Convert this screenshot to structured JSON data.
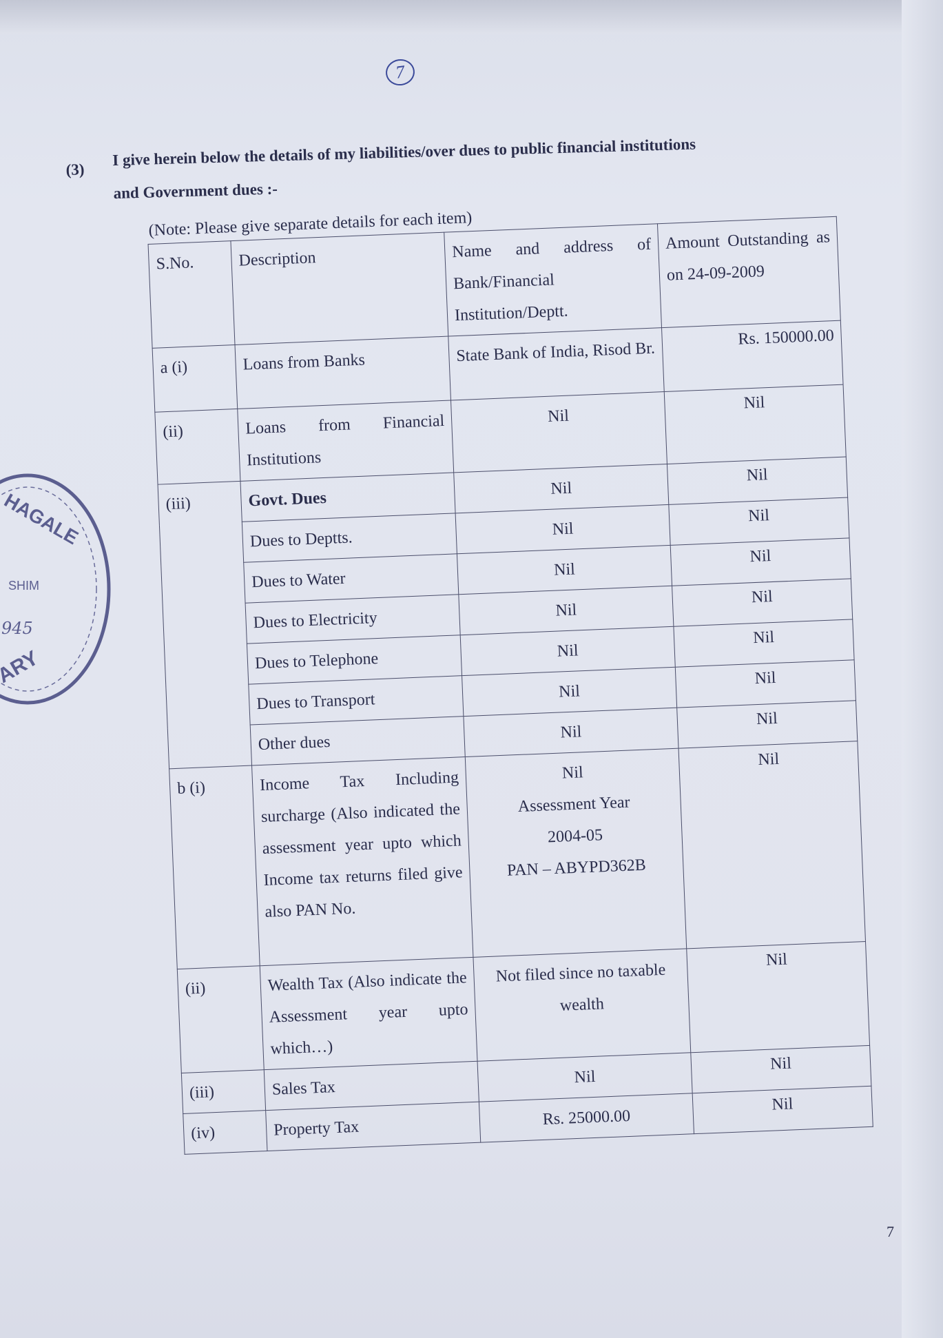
{
  "page": {
    "handwritten_page_mark": "7",
    "page_number": "7"
  },
  "heading": {
    "number": "(3)",
    "line1": "I give herein below the details of my liabilities/over dues to public financial institutions",
    "line2": "and Government dues :-"
  },
  "note": "(Note: Please give separate details for each item)",
  "table": {
    "headers": [
      "S.No.",
      "Description",
      "Name and address of Bank/Financial Institution/Deptt.",
      "Amount Outstanding as on 24-09-2009"
    ],
    "rows": [
      {
        "sno": "a (i)",
        "description": "Loans from Banks",
        "institution": "State Bank of India, Risod Br.",
        "amount": "Rs. 150000.00"
      },
      {
        "sno": "(ii)",
        "description": "Loans from Financial Institutions",
        "institution": "Nil",
        "amount": "Nil"
      },
      {
        "sno": "(iii)",
        "description": "Govt. Dues",
        "institution": "Nil",
        "amount": "Nil"
      },
      {
        "sno": "",
        "description": "Dues to Deptts.",
        "institution": "Nil",
        "amount": "Nil"
      },
      {
        "sno": "",
        "description": "Dues to Water",
        "institution": "Nil",
        "amount": "Nil"
      },
      {
        "sno": "",
        "description": "Dues to Electricity",
        "institution": "Nil",
        "amount": "Nil"
      },
      {
        "sno": "",
        "description": "Dues to Telephone",
        "institution": "Nil",
        "amount": "Nil"
      },
      {
        "sno": "",
        "description": "Dues to Transport",
        "institution": "Nil",
        "amount": "Nil"
      },
      {
        "sno": "",
        "description": "Other dues",
        "institution": "Nil",
        "amount": "Nil"
      },
      {
        "sno": "b (i)",
        "description": "Income Tax Including surcharge (Also indicated the assessment year upto which Income tax returns filed give also PAN No.",
        "institution": "Nil\nAssessment Year\n2004-05\nPAN – ABYPD362B",
        "amount": "Nil"
      },
      {
        "sno": "(ii)",
        "description": "Wealth Tax (Also indicate the Assessment year upto which…)",
        "institution": "Not filed since no taxable wealth",
        "amount": "Nil"
      },
      {
        "sno": "(iii)",
        "description": "Sales Tax",
        "institution": "Nil",
        "amount": "Nil"
      },
      {
        "sno": "(iv)",
        "description": "Property Tax",
        "institution": "Rs. 25000.00",
        "amount": "Nil"
      }
    ]
  },
  "stamp": {
    "text_fragments": [
      "HAGALE",
      "SHIM",
      "945",
      "ARY"
    ]
  }
}
